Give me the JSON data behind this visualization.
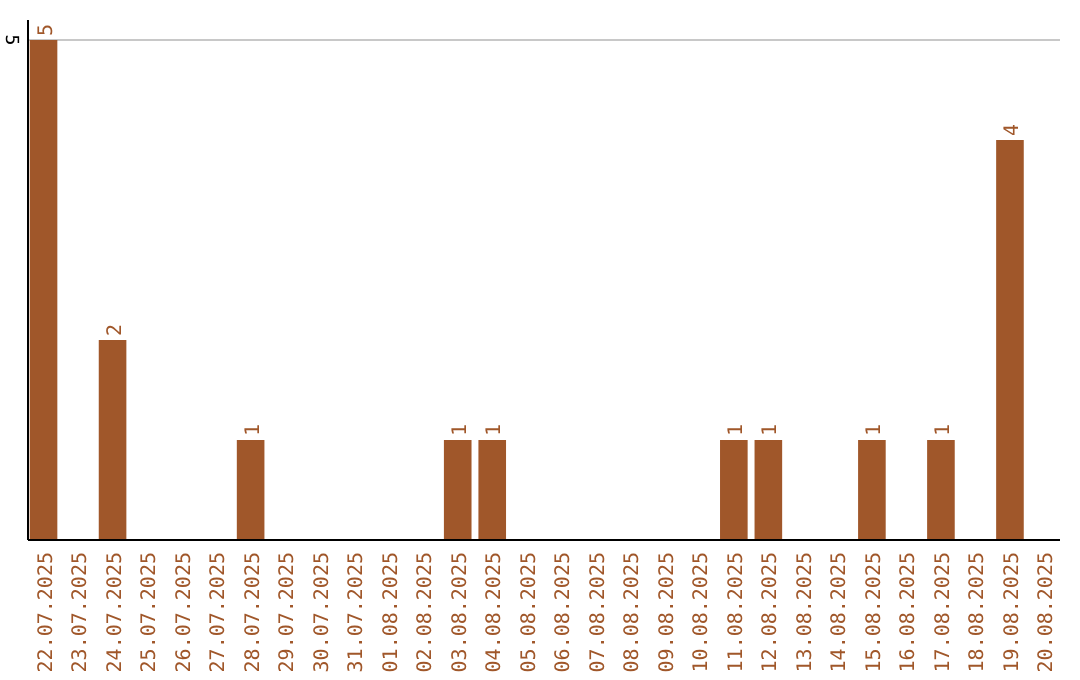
{
  "chart_data": {
    "type": "bar",
    "categories": [
      "22.07.2025",
      "23.07.2025",
      "24.07.2025",
      "25.07.2025",
      "26.07.2025",
      "27.07.2025",
      "28.07.2025",
      "29.07.2025",
      "30.07.2025",
      "31.07.2025",
      "01.08.2025",
      "02.08.2025",
      "03.08.2025",
      "04.08.2025",
      "05.08.2025",
      "06.08.2025",
      "07.08.2025",
      "08.08.2025",
      "09.08.2025",
      "10.08.2025",
      "11.08.2025",
      "12.08.2025",
      "13.08.2025",
      "14.08.2025",
      "15.08.2025",
      "16.08.2025",
      "17.08.2025",
      "18.08.2025",
      "19.08.2025",
      "20.08.2025"
    ],
    "values": [
      5,
      0,
      2,
      0,
      0,
      0,
      1,
      0,
      0,
      0,
      0,
      0,
      1,
      1,
      0,
      0,
      0,
      0,
      0,
      0,
      1,
      1,
      0,
      0,
      1,
      0,
      1,
      0,
      4,
      0
    ],
    "value_labels": [
      "5",
      null,
      "2",
      null,
      null,
      null,
      "1",
      null,
      null,
      null,
      null,
      null,
      "1",
      "1",
      null,
      null,
      null,
      null,
      null,
      null,
      "1",
      "1",
      null,
      null,
      "1",
      null,
      "1",
      null,
      "4",
      null
    ],
    "color": "#a0572a",
    "ylim": [
      0,
      5.2
    ],
    "yticks": [
      5
    ],
    "grid": "y"
  }
}
